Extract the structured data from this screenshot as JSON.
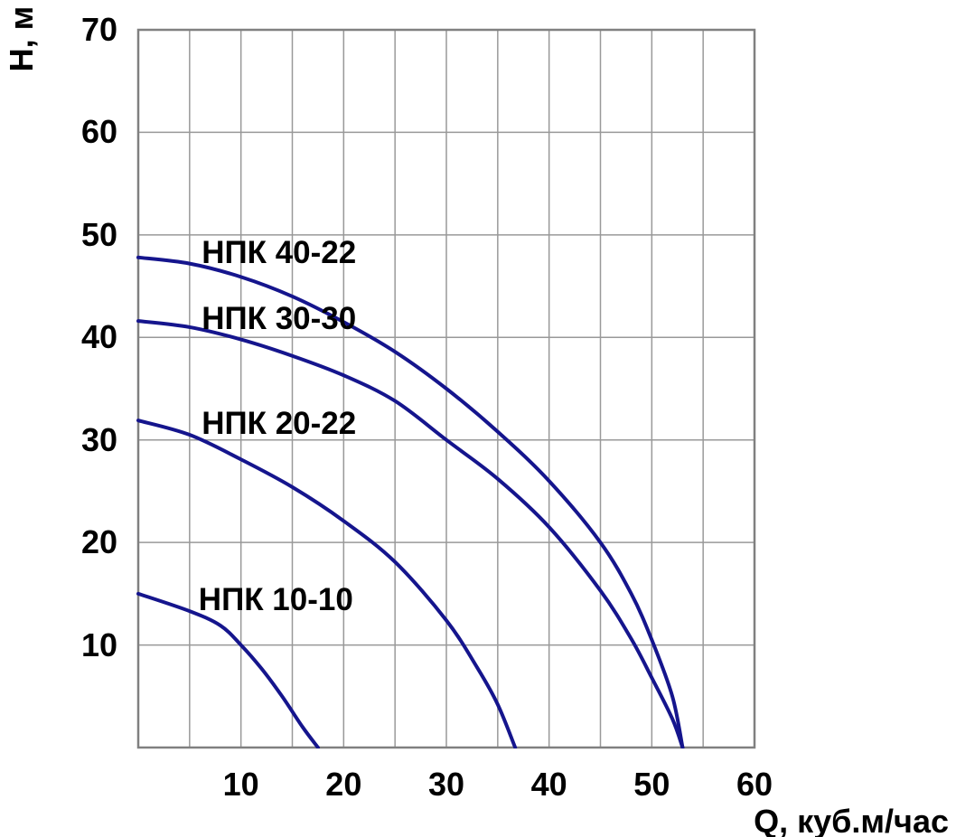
{
  "chart_data": {
    "type": "line",
    "title": "",
    "xlabel": "Q, куб.м/час",
    "ylabel": "Н, м",
    "xlim": [
      0,
      60
    ],
    "ylim": [
      0,
      70
    ],
    "x_ticks": [
      10,
      20,
      30,
      40,
      50,
      60
    ],
    "y_ticks": [
      10,
      20,
      30,
      40,
      50,
      60,
      70
    ],
    "x_grid_step": 5,
    "y_grid_step": 10,
    "grid": true,
    "legend_position": "inline-labels",
    "colors": {
      "curve": "#15158d",
      "grid": "#999999",
      "border": "#808080",
      "text": "#000000",
      "background": "#ffffff"
    },
    "series": [
      {
        "name": "НПК 40-22",
        "color": "#15158d",
        "label_pos": {
          "q": 13.7,
          "h": 48.2
        },
        "points": [
          [
            0,
            47.8
          ],
          [
            5,
            47.2
          ],
          [
            10,
            45.9
          ],
          [
            15,
            44.0
          ],
          [
            20,
            41.5
          ],
          [
            25,
            38.6
          ],
          [
            30,
            35.0
          ],
          [
            35,
            30.8
          ],
          [
            40,
            26.0
          ],
          [
            45,
            20.0
          ],
          [
            48,
            15.0
          ],
          [
            50,
            10.5
          ],
          [
            52,
            5.0
          ],
          [
            53,
            0
          ]
        ]
      },
      {
        "name": "НПК 30-30",
        "color": "#15158d",
        "label_pos": {
          "q": 13.7,
          "h": 41.8
        },
        "points": [
          [
            0,
            41.6
          ],
          [
            5,
            41.0
          ],
          [
            10,
            39.8
          ],
          [
            15,
            38.2
          ],
          [
            20,
            36.3
          ],
          [
            25,
            33.8
          ],
          [
            30,
            30.0
          ],
          [
            35,
            26.2
          ],
          [
            40,
            21.5
          ],
          [
            45,
            15.3
          ],
          [
            48,
            10.6
          ],
          [
            50,
            6.8
          ],
          [
            52,
            2.8
          ],
          [
            53,
            0
          ]
        ]
      },
      {
        "name": "НПК 20-22",
        "color": "#15158d",
        "label_pos": {
          "q": 13.7,
          "h": 31.6
        },
        "points": [
          [
            0,
            31.9
          ],
          [
            5,
            30.5
          ],
          [
            10,
            28.1
          ],
          [
            15,
            25.4
          ],
          [
            20,
            22.1
          ],
          [
            25,
            18.1
          ],
          [
            30,
            12.4
          ],
          [
            33,
            7.8
          ],
          [
            35,
            4.2
          ],
          [
            36.7,
            0
          ]
        ]
      },
      {
        "name": "НПК 10-10",
        "color": "#15158d",
        "label_pos": {
          "q": 13.4,
          "h": 14.4
        },
        "points": [
          [
            0,
            15.0
          ],
          [
            5,
            13.3
          ],
          [
            8,
            11.9
          ],
          [
            10,
            10.0
          ],
          [
            12,
            7.7
          ],
          [
            14,
            5.0
          ],
          [
            16,
            2.0
          ],
          [
            17.5,
            0
          ]
        ]
      }
    ]
  }
}
